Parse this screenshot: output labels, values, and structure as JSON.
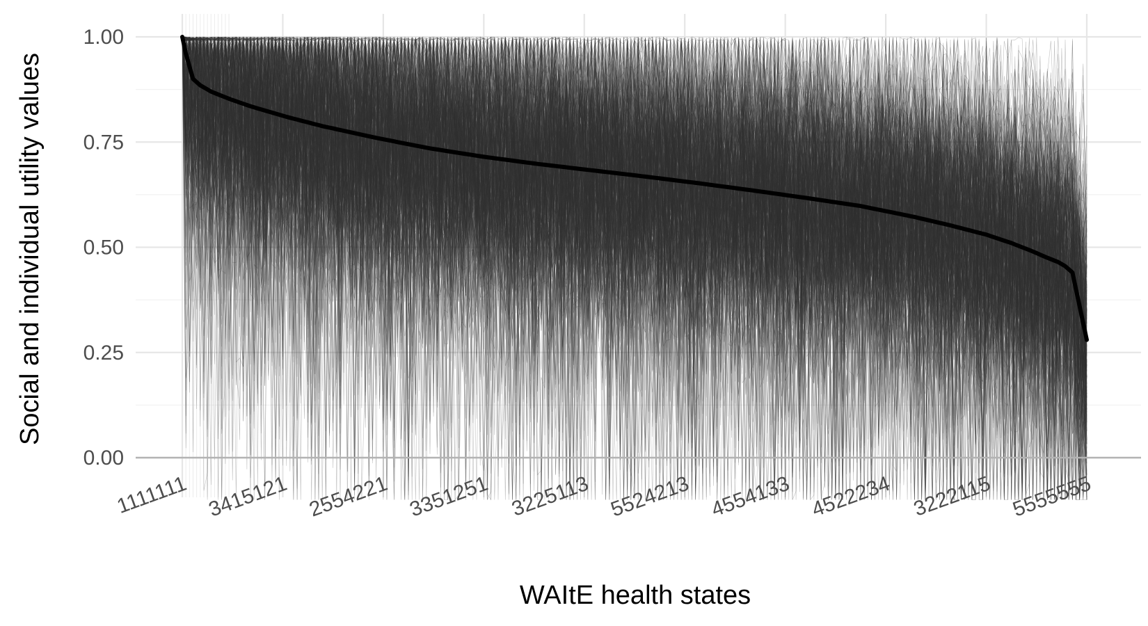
{
  "chart_data": {
    "type": "line",
    "xlabel": "WAItE health states",
    "ylabel": "Social and individual utility values",
    "ylim": [
      0,
      1
    ],
    "y_ticks": [
      "0.00",
      "0.25",
      "0.50",
      "0.75",
      "1.00"
    ],
    "y_tick_values": [
      0,
      0.25,
      0.5,
      0.75,
      1.0
    ],
    "x_tick_labels": [
      "1111111",
      "3415121",
      "2554221",
      "3351251",
      "3225113",
      "5524213",
      "4554133",
      "4522234",
      "3222115",
      "5555555"
    ],
    "x_tick_positions": [
      1,
      29,
      57,
      85,
      113,
      141,
      169,
      197,
      225,
      253
    ],
    "n_states": 253,
    "grid": true,
    "legend": "none",
    "series": [
      {
        "role": "social-tariff",
        "color": "#000000",
        "x": [
          1,
          2,
          3,
          4,
          6,
          9,
          14,
          20,
          30,
          40,
          55,
          70,
          85,
          100,
          115,
          130,
          145,
          160,
          175,
          190,
          205,
          215,
          225,
          232,
          238,
          242,
          245,
          247,
          249,
          250,
          251,
          252,
          253
        ],
        "values": [
          1.0,
          0.96,
          0.93,
          0.9,
          0.885,
          0.87,
          0.853,
          0.835,
          0.81,
          0.788,
          0.76,
          0.735,
          0.715,
          0.698,
          0.683,
          0.668,
          0.652,
          0.635,
          0.617,
          0.598,
          0.572,
          0.552,
          0.53,
          0.51,
          0.49,
          0.475,
          0.465,
          0.455,
          0.44,
          0.4,
          0.36,
          0.32,
          0.28
        ]
      },
      {
        "role": "individual-utilities",
        "color": "#333333",
        "count": 350,
        "description": "individual respondent utility lines"
      }
    ]
  }
}
